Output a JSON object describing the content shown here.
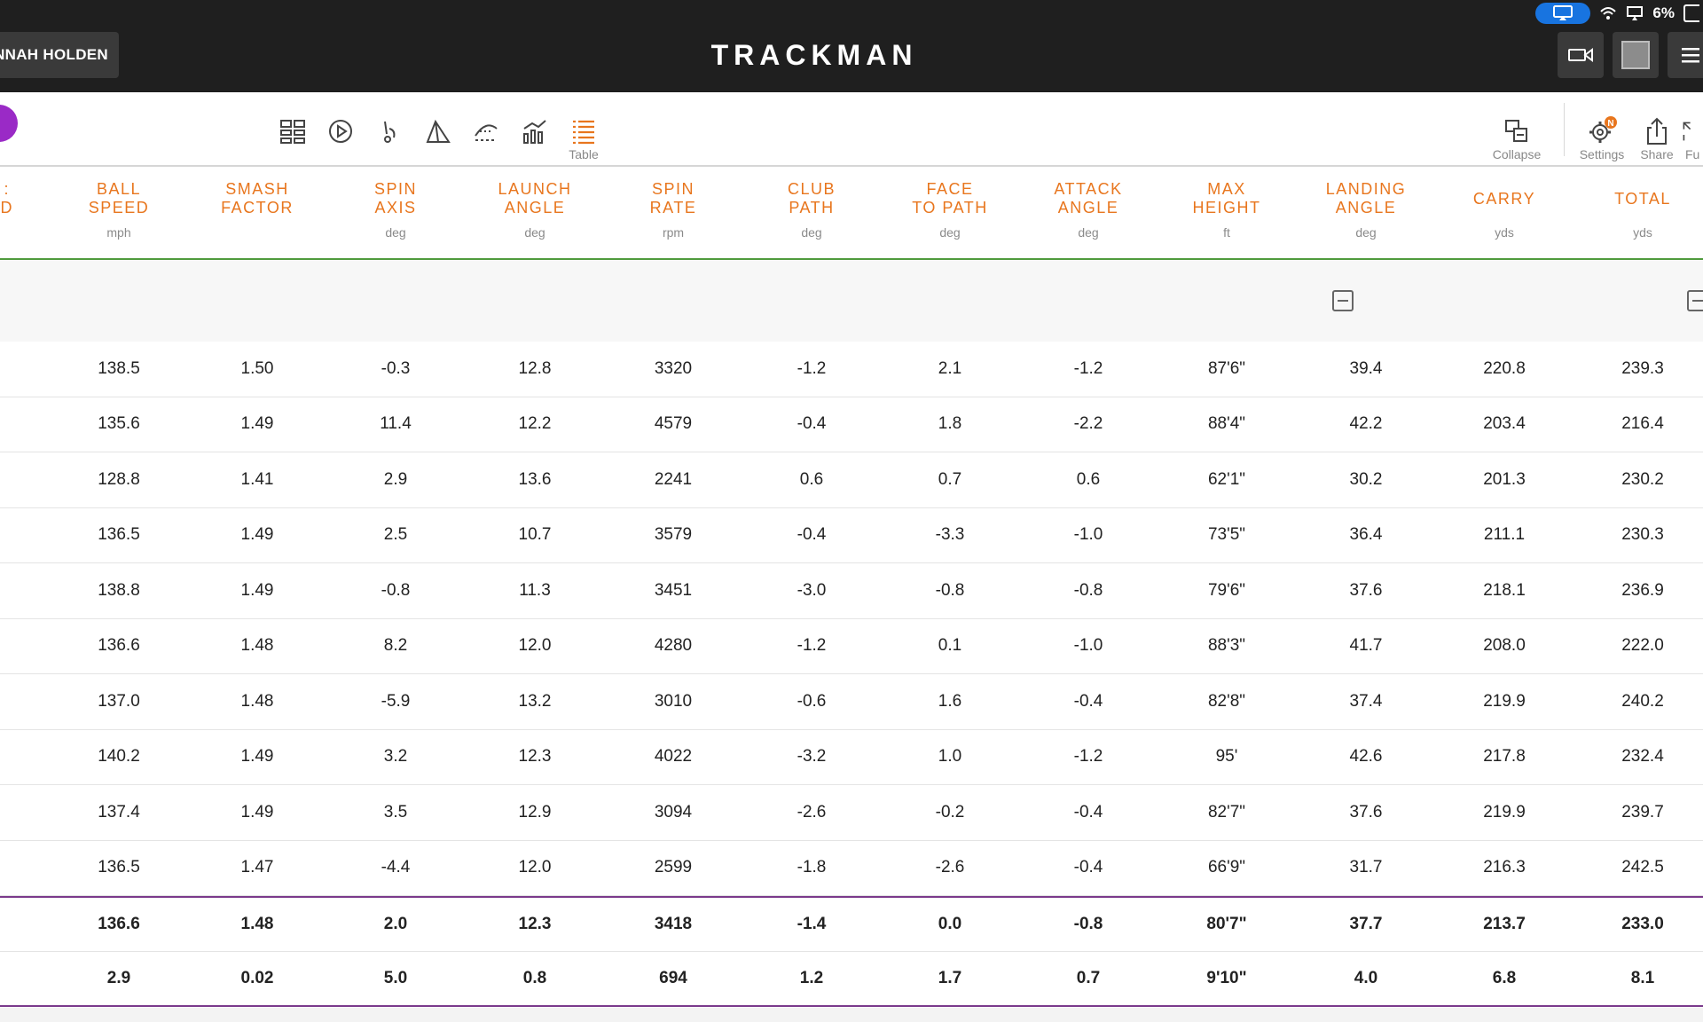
{
  "header": {
    "user_name": "NNAH HOLDEN",
    "brand": "TRACKMAN",
    "battery": "6%"
  },
  "toolbar": {
    "table_label": "Table",
    "collapse_label": "Collapse",
    "settings_label": "Settings",
    "settings_badge": "N",
    "share_label": "Share",
    "fullscreen_label": "Fu"
  },
  "columns": [
    {
      "label": "BALL\nSPEED",
      "unit": "mph"
    },
    {
      "label": "SMASH\nFACTOR",
      "unit": ""
    },
    {
      "label": "SPIN\nAXIS",
      "unit": "deg"
    },
    {
      "label": "LAUNCH\nANGLE",
      "unit": "deg"
    },
    {
      "label": "SPIN\nRATE",
      "unit": "rpm"
    },
    {
      "label": "CLUB\nPATH",
      "unit": "deg"
    },
    {
      "label": "FACE\nTO PATH",
      "unit": "deg"
    },
    {
      "label": "ATTACK\nANGLE",
      "unit": "deg"
    },
    {
      "label": "MAX\nHEIGHT",
      "unit": "ft"
    },
    {
      "label": "LANDING\nANGLE",
      "unit": "deg"
    },
    {
      "label": "CARRY",
      "unit": "yds"
    },
    {
      "label": "TOTAL",
      "unit": "yds"
    }
  ],
  "rows": [
    [
      "138.5",
      "1.50",
      "-0.3",
      "12.8",
      "3320",
      "-1.2",
      "2.1",
      "-1.2",
      "87'6\"",
      "39.4",
      "220.8",
      "239.3"
    ],
    [
      "135.6",
      "1.49",
      "11.4",
      "12.2",
      "4579",
      "-0.4",
      "1.8",
      "-2.2",
      "88'4\"",
      "42.2",
      "203.4",
      "216.4"
    ],
    [
      "128.8",
      "1.41",
      "2.9",
      "13.6",
      "2241",
      "0.6",
      "0.7",
      "0.6",
      "62'1\"",
      "30.2",
      "201.3",
      "230.2"
    ],
    [
      "136.5",
      "1.49",
      "2.5",
      "10.7",
      "3579",
      "-0.4",
      "-3.3",
      "-1.0",
      "73'5\"",
      "36.4",
      "211.1",
      "230.3"
    ],
    [
      "138.8",
      "1.49",
      "-0.8",
      "11.3",
      "3451",
      "-3.0",
      "-0.8",
      "-0.8",
      "79'6\"",
      "37.6",
      "218.1",
      "236.9"
    ],
    [
      "136.6",
      "1.48",
      "8.2",
      "12.0",
      "4280",
      "-1.2",
      "0.1",
      "-1.0",
      "88'3\"",
      "41.7",
      "208.0",
      "222.0"
    ],
    [
      "137.0",
      "1.48",
      "-5.9",
      "13.2",
      "3010",
      "-0.6",
      "1.6",
      "-0.4",
      "82'8\"",
      "37.4",
      "219.9",
      "240.2"
    ],
    [
      "140.2",
      "1.49",
      "3.2",
      "12.3",
      "4022",
      "-3.2",
      "1.0",
      "-1.2",
      "95'",
      "42.6",
      "217.8",
      "232.4"
    ],
    [
      "137.4",
      "1.49",
      "3.5",
      "12.9",
      "3094",
      "-2.6",
      "-0.2",
      "-0.4",
      "82'7\"",
      "37.6",
      "219.9",
      "239.7"
    ],
    [
      "136.5",
      "1.47",
      "-4.4",
      "12.0",
      "2599",
      "-1.8",
      "-2.6",
      "-0.4",
      "66'9\"",
      "31.7",
      "216.3",
      "242.5"
    ]
  ],
  "average": [
    "136.6",
    "1.48",
    "2.0",
    "12.3",
    "3418",
    "-1.4",
    "0.0",
    "-0.8",
    "80'7\"",
    "37.7",
    "213.7",
    "233.0"
  ],
  "std_dev": [
    "2.9",
    "0.02",
    "5.0",
    "0.8",
    "694",
    "1.2",
    "1.7",
    "0.7",
    "9'10\"",
    "4.0",
    "6.8",
    "8.1"
  ],
  "colors": {
    "accent_orange": "#e8761e",
    "topbar": "#1f1f1f",
    "purple": "#9a2ac6",
    "summary_line": "#7b3a8c",
    "header_line": "#4f9b3d",
    "airplay_blue": "#1874e0"
  },
  "icons": {
    "tools": [
      "dashboard-icon",
      "play-icon",
      "swing-icon",
      "trajectory-icon",
      "ball-flight-icon",
      "chart-icon",
      "table-icon"
    ],
    "right_tools": [
      "collapse-icon",
      "settings-icon",
      "share-icon",
      "fullscreen-icon"
    ]
  }
}
